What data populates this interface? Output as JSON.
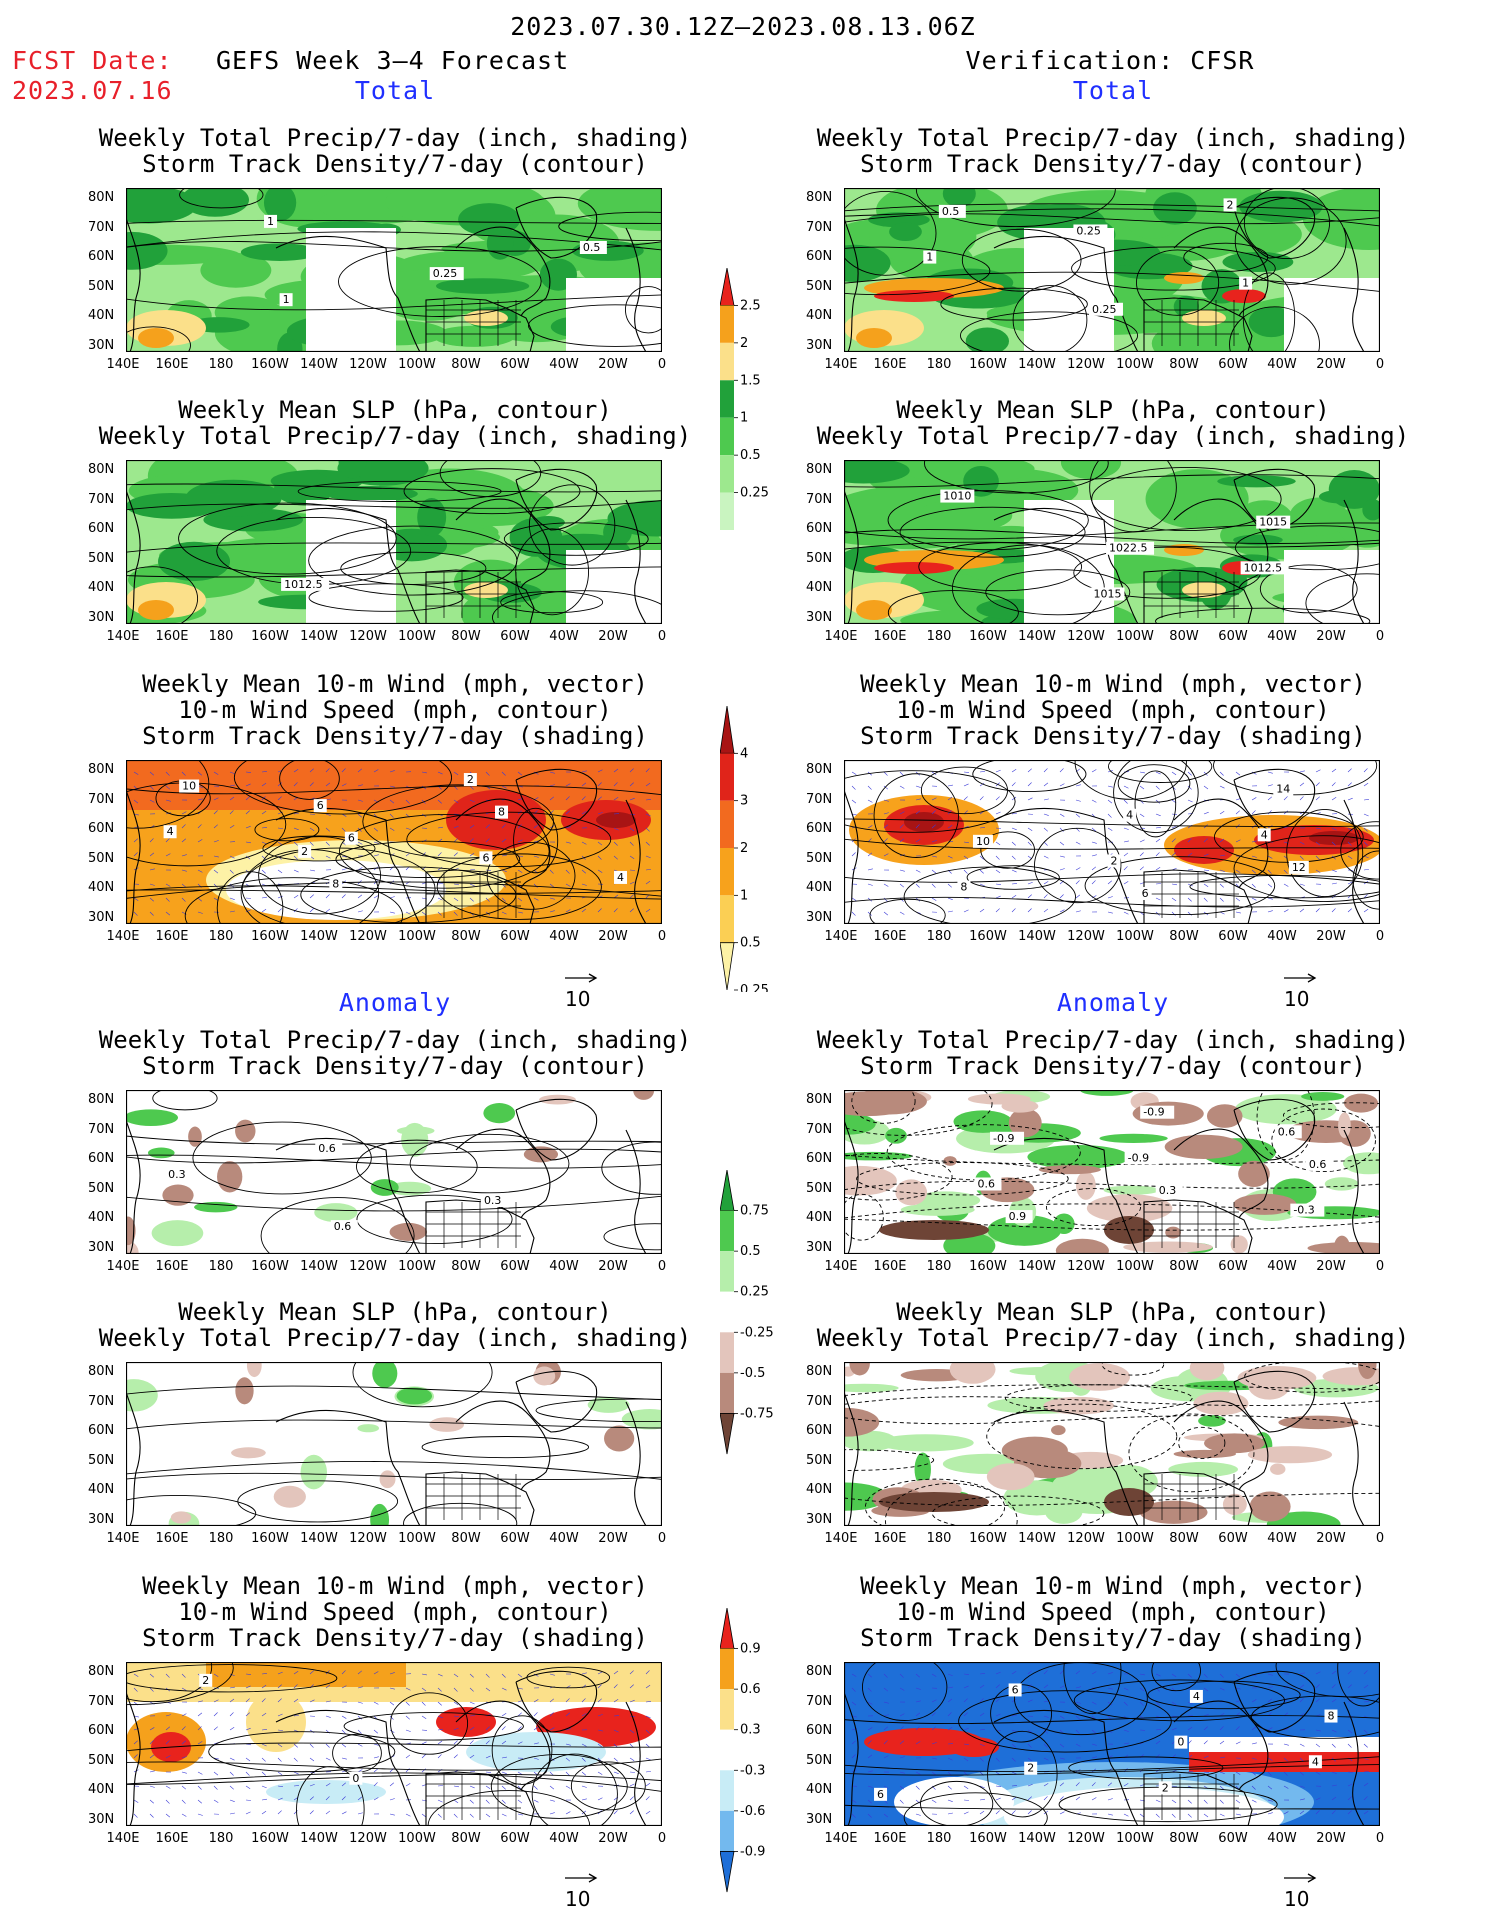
{
  "header": {
    "period": "2023.07.30.12Z–2023.08.13.06Z",
    "fcst_label": "FCST Date:",
    "fcst_date": "2023.07.16",
    "left_title": "GEFS Week 3–4 Forecast",
    "right_title": "Verification: CFSR",
    "total": "Total",
    "anomaly": "Anomaly"
  },
  "titles": {
    "precip_storm": [
      "Weekly Total Precip/7-day (inch, shading)",
      "Storm Track Density/7-day (contour)"
    ],
    "slp_precip": [
      "Weekly Mean SLP (hPa, contour)",
      "Weekly Total Precip/7-day (inch, shading)"
    ],
    "wind_storm": [
      "Weekly Mean 10-m Wind (mph, vector)",
      "10-m Wind Speed (mph, contour)",
      "Storm Track Density/7-day (shading)"
    ]
  },
  "axes": {
    "lat": [
      "80N",
      "70N",
      "60N",
      "50N",
      "40N",
      "30N"
    ],
    "lon": [
      "140E",
      "160E",
      "180",
      "160W",
      "140W",
      "120W",
      "100W",
      "80W",
      "60W",
      "40W",
      "20W",
      "0"
    ]
  },
  "vector_ref": "10",
  "colorbars": {
    "precip_total": {
      "labels": [
        "2.5",
        "2",
        "1.5",
        "1",
        "0.5",
        "0.25"
      ],
      "colors": [
        "#e8231d",
        "#f5a11c",
        "#fbe08a",
        "#21a13a",
        "#4ec94f",
        "#9de88e",
        "#c9f4c0"
      ]
    },
    "storm_total": {
      "labels": [
        "4",
        "3",
        "2",
        "1",
        "0.5",
        "0.25"
      ],
      "colors": [
        "#a81414",
        "#e0241a",
        "#f26a1f",
        "#f7a21c",
        "#fbcf54",
        "#fdf2a6"
      ]
    },
    "precip_anom": {
      "labels": [
        "0.75",
        "0.5",
        "0.25",
        "-0.25",
        "-0.5",
        "-0.75"
      ],
      "colors": [
        "#21a13a",
        "#4ec94f",
        "#b6eeab",
        "#ffffff",
        "#e3c5bc",
        "#b88a7c",
        "#6e4436"
      ]
    },
    "storm_anom": {
      "labels": [
        "0.9",
        "0.6",
        "0.3",
        "-0.3",
        "-0.6",
        "-0.9"
      ],
      "colors": [
        "#e8231d",
        "#f5a11c",
        "#fbe08a",
        "#ffffff",
        "#c8ecf6",
        "#73b9ee",
        "#1e6fd8"
      ]
    }
  },
  "panel_labels": {
    "L1": [
      "1",
      "0.5",
      "0.25",
      "1"
    ],
    "R1": [
      "2",
      "0.25",
      "1",
      "1",
      "0.25",
      "0.5"
    ],
    "L2": [
      "1012.5"
    ],
    "R2": [
      "1012.5",
      "1015",
      "1010",
      "1015",
      "1022.5"
    ],
    "L3": [
      "2",
      "4",
      "2",
      "6",
      "4",
      "6",
      "8",
      "10",
      "8",
      "6"
    ],
    "R3": [
      "4",
      "2",
      "8",
      "14",
      "4",
      "10",
      "12",
      "6"
    ],
    "L4": [
      "0.6",
      "0.3",
      "0.3",
      "0.6"
    ],
    "R4": [
      "0.6",
      "-0.9",
      "0.6",
      "-0.3",
      "-0.9",
      "-0.9",
      "0.6",
      "0.3",
      "0.9"
    ],
    "L6": [
      "0",
      "2"
    ],
    "R6": [
      "4",
      "2",
      "6",
      "8",
      "0",
      "2",
      "6",
      "4"
    ]
  }
}
